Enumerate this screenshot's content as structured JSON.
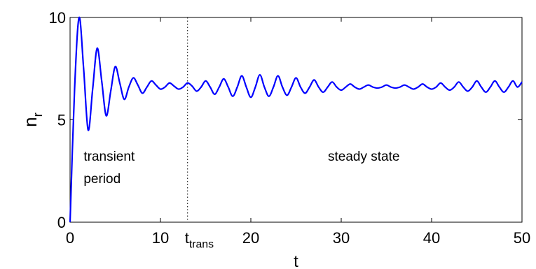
{
  "chart_data": {
    "type": "line",
    "xlabel": "t",
    "ylabel": {
      "text": "n",
      "subscript": "r"
    },
    "xlim": [
      0,
      50
    ],
    "ylim": [
      0,
      10
    ],
    "xticks": [
      0,
      10,
      20,
      30,
      40,
      50
    ],
    "yticks": [
      0,
      5,
      10
    ],
    "marker_line": {
      "x": 13,
      "text": "t",
      "subscript": "trans"
    },
    "annotations": [
      {
        "x": 1.5,
        "y": 3.0,
        "lines": [
          "transient",
          "period"
        ]
      },
      {
        "x": 32.5,
        "y": 3.0,
        "lines": [
          "steady state"
        ]
      }
    ],
    "x": [
      0,
      0.5,
      1,
      1.5,
      2,
      2.5,
      3,
      3.5,
      4,
      4.5,
      5,
      5.5,
      6,
      6.5,
      7,
      7.5,
      8,
      8.5,
      9,
      9.5,
      10,
      10.5,
      11,
      11.5,
      12,
      12.5,
      13,
      13.5,
      14,
      14.5,
      15,
      15.5,
      16,
      16.5,
      17,
      17.5,
      18,
      18.5,
      19,
      19.5,
      20,
      20.5,
      21,
      21.5,
      22,
      22.5,
      23,
      23.5,
      24,
      24.5,
      25,
      25.5,
      26,
      26.5,
      27,
      27.5,
      28,
      28.5,
      29,
      29.5,
      30,
      30.5,
      31,
      31.5,
      32,
      32.5,
      33,
      33.5,
      34,
      34.5,
      35,
      35.5,
      36,
      36.5,
      37,
      37.5,
      38,
      38.5,
      39,
      39.5,
      40,
      40.5,
      41,
      41.5,
      42,
      42.5,
      43,
      43.5,
      44,
      44.5,
      45,
      45.5,
      46,
      46.5,
      47,
      47.5,
      48,
      48.5,
      49,
      49.5,
      50
    ],
    "series": [
      {
        "color": "#0000ff",
        "values": [
          0,
          6.5,
          10,
          7.5,
          4.5,
          6.5,
          8.5,
          6.9,
          5.2,
          6.4,
          7.6,
          6.8,
          6.0,
          6.6,
          7.05,
          6.7,
          6.3,
          6.6,
          6.9,
          6.7,
          6.5,
          6.6,
          6.8,
          6.65,
          6.5,
          6.6,
          6.8,
          6.65,
          6.4,
          6.6,
          6.9,
          6.6,
          6.25,
          6.6,
          7.0,
          6.6,
          6.15,
          6.6,
          7.15,
          6.6,
          6.1,
          6.6,
          7.2,
          6.6,
          6.15,
          6.6,
          7.15,
          6.6,
          6.2,
          6.6,
          7.05,
          6.6,
          6.3,
          6.6,
          6.95,
          6.6,
          6.35,
          6.6,
          6.85,
          6.6,
          6.45,
          6.6,
          6.75,
          6.6,
          6.5,
          6.6,
          6.7,
          6.6,
          6.55,
          6.6,
          6.7,
          6.6,
          6.55,
          6.6,
          6.7,
          6.6,
          6.5,
          6.6,
          6.75,
          6.6,
          6.5,
          6.6,
          6.8,
          6.6,
          6.45,
          6.6,
          6.85,
          6.6,
          6.4,
          6.6,
          6.9,
          6.6,
          6.35,
          6.6,
          6.9,
          6.6,
          6.35,
          6.6,
          6.9,
          6.6,
          6.85
        ]
      }
    ]
  }
}
